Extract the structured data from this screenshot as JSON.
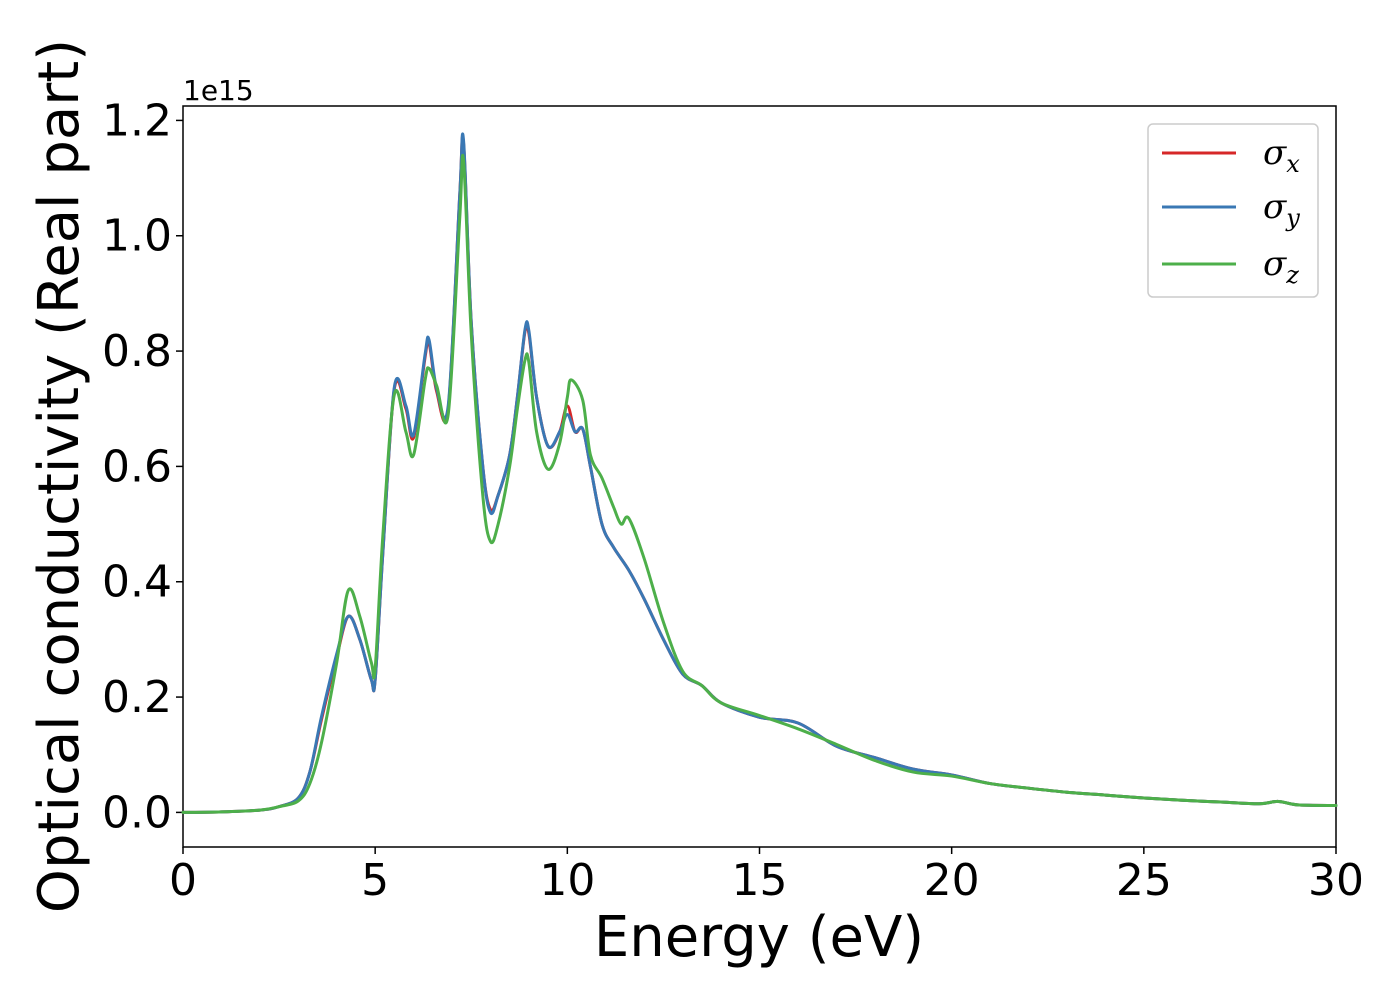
{
  "chart_data": {
    "type": "line",
    "xlabel": "Energy (eV)",
    "ylabel": "Optical conductivity (Real part)",
    "y_offset_text": "1e15",
    "xlim": [
      0,
      30
    ],
    "ylim": [
      -0.06,
      1.225
    ],
    "y_scale_factor": 1000000000000000.0,
    "xticks": [
      0,
      5,
      10,
      15,
      20,
      25,
      30
    ],
    "xtick_labels": [
      "0",
      "5",
      "10",
      "15",
      "20",
      "25",
      "30"
    ],
    "yticks": [
      0.0,
      0.2,
      0.4,
      0.6,
      0.8,
      1.0,
      1.2
    ],
    "ytick_labels": [
      "0.0",
      "0.2",
      "0.4",
      "0.6",
      "0.8",
      "1.0",
      "1.2"
    ],
    "grid": false,
    "legend_placement": "top-right",
    "series": [
      {
        "name": "σx",
        "legend_base": "σ",
        "legend_sub": "x",
        "color": "#d62728",
        "x": [
          0,
          1,
          2,
          2.5,
          3,
          3.3,
          3.6,
          4.0,
          4.3,
          4.6,
          4.9,
          5.0,
          5.2,
          5.5,
          5.8,
          6.0,
          6.3,
          6.4,
          6.6,
          6.9,
          7.2,
          7.3,
          7.5,
          7.8,
          8.0,
          8.2,
          8.5,
          8.7,
          8.9,
          9.0,
          9.2,
          9.5,
          9.8,
          10.0,
          10.2,
          10.4,
          10.6,
          10.9,
          11.2,
          11.6,
          12.0,
          12.5,
          13.0,
          13.5,
          14.0,
          15.0,
          16.0,
          17.0,
          18.0,
          19.0,
          20.0,
          21.0,
          22.0,
          23.0,
          24.0,
          25.0,
          26.0,
          27.0,
          28.0,
          28.5,
          29.0,
          30.0
        ],
        "y": [
          0.0,
          0.001,
          0.004,
          0.01,
          0.025,
          0.07,
          0.16,
          0.27,
          0.34,
          0.3,
          0.23,
          0.23,
          0.45,
          0.735,
          0.7,
          0.65,
          0.79,
          0.815,
          0.73,
          0.7,
          1.07,
          1.16,
          0.85,
          0.6,
          0.525,
          0.55,
          0.62,
          0.72,
          0.835,
          0.83,
          0.72,
          0.635,
          0.66,
          0.705,
          0.66,
          0.665,
          0.6,
          0.5,
          0.46,
          0.42,
          0.37,
          0.3,
          0.24,
          0.22,
          0.19,
          0.165,
          0.155,
          0.115,
          0.095,
          0.075,
          0.065,
          0.05,
          0.042,
          0.035,
          0.03,
          0.025,
          0.021,
          0.018,
          0.015,
          0.019,
          0.013,
          0.012
        ]
      },
      {
        "name": "σy",
        "legend_base": "σ",
        "legend_sub": "y",
        "color": "#3a78b4",
        "x": [
          0,
          1,
          2,
          2.5,
          3,
          3.3,
          3.6,
          4.0,
          4.3,
          4.6,
          4.9,
          5.0,
          5.2,
          5.5,
          5.8,
          6.0,
          6.3,
          6.4,
          6.6,
          6.9,
          7.2,
          7.3,
          7.5,
          7.8,
          8.0,
          8.2,
          8.5,
          8.7,
          8.9,
          9.0,
          9.2,
          9.5,
          9.8,
          10.0,
          10.2,
          10.4,
          10.6,
          10.9,
          11.2,
          11.6,
          12.0,
          12.5,
          13.0,
          13.5,
          14.0,
          15.0,
          16.0,
          17.0,
          18.0,
          19.0,
          20.0,
          21.0,
          22.0,
          23.0,
          24.0,
          25.0,
          26.0,
          27.0,
          28.0,
          28.5,
          29.0,
          30.0
        ],
        "y": [
          0.0,
          0.001,
          0.004,
          0.01,
          0.025,
          0.07,
          0.165,
          0.275,
          0.34,
          0.3,
          0.23,
          0.23,
          0.45,
          0.738,
          0.705,
          0.655,
          0.795,
          0.82,
          0.735,
          0.705,
          1.07,
          1.165,
          0.85,
          0.6,
          0.52,
          0.55,
          0.62,
          0.72,
          0.838,
          0.835,
          0.72,
          0.635,
          0.66,
          0.69,
          0.66,
          0.665,
          0.6,
          0.5,
          0.46,
          0.42,
          0.37,
          0.3,
          0.24,
          0.22,
          0.19,
          0.165,
          0.155,
          0.115,
          0.095,
          0.075,
          0.065,
          0.05,
          0.042,
          0.035,
          0.03,
          0.025,
          0.021,
          0.018,
          0.015,
          0.019,
          0.013,
          0.012
        ]
      },
      {
        "name": "σz",
        "legend_base": "σ",
        "legend_sub": "z",
        "color": "#4daf4a",
        "x": [
          0,
          1,
          2,
          2.5,
          3,
          3.3,
          3.6,
          4.0,
          4.3,
          4.6,
          4.9,
          5.0,
          5.2,
          5.5,
          5.8,
          6.0,
          6.3,
          6.4,
          6.6,
          6.9,
          7.2,
          7.3,
          7.5,
          7.8,
          8.0,
          8.2,
          8.5,
          8.7,
          8.9,
          9.0,
          9.2,
          9.5,
          9.8,
          10.0,
          10.1,
          10.4,
          10.6,
          10.9,
          11.2,
          11.4,
          11.6,
          12.0,
          12.5,
          13.0,
          13.5,
          14.0,
          15.0,
          16.0,
          17.0,
          18.0,
          19.0,
          20.0,
          21.0,
          22.0,
          23.0,
          24.0,
          25.0,
          26.0,
          27.0,
          28.0,
          28.5,
          29.0,
          30.0
        ],
        "y": [
          0.0,
          0.001,
          0.004,
          0.01,
          0.02,
          0.05,
          0.12,
          0.26,
          0.385,
          0.34,
          0.26,
          0.25,
          0.48,
          0.725,
          0.66,
          0.62,
          0.75,
          0.77,
          0.74,
          0.69,
          1.03,
          1.13,
          0.83,
          0.55,
          0.47,
          0.5,
          0.6,
          0.7,
          0.785,
          0.78,
          0.66,
          0.595,
          0.64,
          0.72,
          0.75,
          0.715,
          0.62,
          0.58,
          0.53,
          0.5,
          0.51,
          0.44,
          0.33,
          0.245,
          0.22,
          0.19,
          0.168,
          0.145,
          0.118,
          0.09,
          0.07,
          0.063,
          0.05,
          0.042,
          0.035,
          0.03,
          0.025,
          0.021,
          0.018,
          0.015,
          0.019,
          0.013,
          0.012
        ]
      }
    ]
  }
}
